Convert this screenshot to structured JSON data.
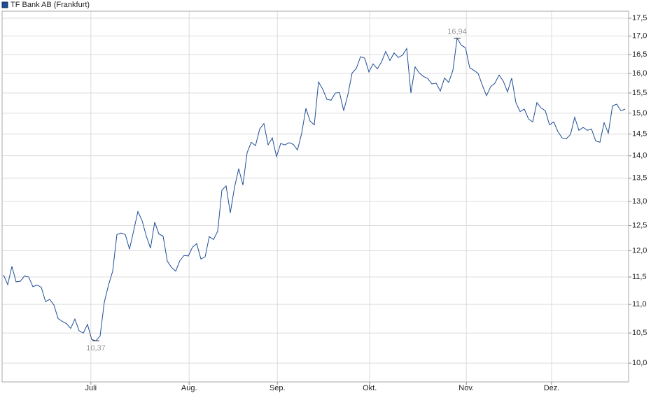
{
  "chart_data": {
    "type": "line",
    "legend": "TF Bank AB (Frankfurt)",
    "color": "#1f4e96",
    "log_y": true,
    "grid": true,
    "legend_position": "top-left",
    "values": [
      11.54,
      11.36,
      11.7,
      11.41,
      11.42,
      11.52,
      11.5,
      11.32,
      11.35,
      11.31,
      11.05,
      11.09,
      10.99,
      10.75,
      10.7,
      10.66,
      10.58,
      10.74,
      10.54,
      10.5,
      10.65,
      10.39,
      10.37,
      10.45,
      11.04,
      11.35,
      11.61,
      12.32,
      12.35,
      12.32,
      12.03,
      12.4,
      12.79,
      12.6,
      12.29,
      12.05,
      12.57,
      12.33,
      12.29,
      11.8,
      11.68,
      11.61,
      11.81,
      11.91,
      11.9,
      12.07,
      12.14,
      11.84,
      11.88,
      12.28,
      12.22,
      12.39,
      13.24,
      13.33,
      12.76,
      13.3,
      13.71,
      13.35,
      14.07,
      14.31,
      14.23,
      14.62,
      14.75,
      14.25,
      14.41,
      13.98,
      14.28,
      14.25,
      14.3,
      14.26,
      14.13,
      14.52,
      15.12,
      14.81,
      14.72,
      15.78,
      15.6,
      15.34,
      15.32,
      15.5,
      15.51,
      15.06,
      15.46,
      16.01,
      16.13,
      16.44,
      16.4,
      16.04,
      16.25,
      16.12,
      16.3,
      16.58,
      16.34,
      16.54,
      16.42,
      16.48,
      16.66,
      15.5,
      16.17,
      16.01,
      15.92,
      15.87,
      15.73,
      15.75,
      15.55,
      15.88,
      15.77,
      16.08,
      16.94,
      16.75,
      16.68,
      16.15,
      16.08,
      16.0,
      15.7,
      15.43,
      15.66,
      15.75,
      15.96,
      15.8,
      15.53,
      15.88,
      15.26,
      15.04,
      15.1,
      14.86,
      14.79,
      15.26,
      15.13,
      15.06,
      14.72,
      14.79,
      14.56,
      14.41,
      14.39,
      14.49,
      14.9,
      14.59,
      14.66,
      14.59,
      14.62,
      14.34,
      14.31,
      14.77,
      14.52,
      15.18,
      15.22,
      15.06,
      15.1
    ],
    "xlim": [
      0,
      148
    ],
    "xticks": [
      {
        "value": 20.8,
        "label": "Juli"
      },
      {
        "value": 44.2,
        "label": "Aug."
      },
      {
        "value": 65.2,
        "label": "Sep."
      },
      {
        "value": 87.2,
        "label": "Okt."
      },
      {
        "value": 110.2,
        "label": "Nov."
      },
      {
        "value": 130.5,
        "label": "Dez."
      }
    ],
    "ylim": [
      9.7,
      17.7
    ],
    "yticks": [
      {
        "value": 10,
        "label": "10,0"
      },
      {
        "value": 10.5,
        "label": "10,5"
      },
      {
        "value": 11,
        "label": "11,0"
      },
      {
        "value": 11.5,
        "label": "11,5"
      },
      {
        "value": 12,
        "label": "12,0"
      },
      {
        "value": 12.5,
        "label": "12,5"
      },
      {
        "value": 13,
        "label": "13,0"
      },
      {
        "value": 13.5,
        "label": "13,5"
      },
      {
        "value": 14,
        "label": "14,0"
      },
      {
        "value": 14.5,
        "label": "14,5"
      },
      {
        "value": 15,
        "label": "15,0"
      },
      {
        "value": 15.5,
        "label": "15,5"
      },
      {
        "value": 16,
        "label": "16,0"
      },
      {
        "value": 16.5,
        "label": "16,5"
      },
      {
        "value": 17,
        "label": "17,0"
      },
      {
        "value": 17.5,
        "label": "17,5"
      }
    ],
    "annotations": [
      {
        "label": "10,37",
        "value": 10.37
      },
      {
        "label": "16,94",
        "value": 16.94
      }
    ]
  }
}
